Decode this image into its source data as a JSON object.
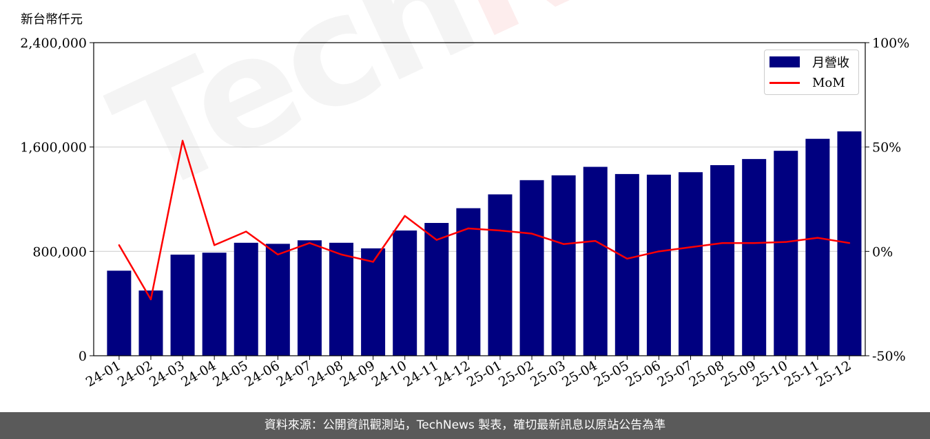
{
  "unit_label": "新台幣仟元",
  "footer_text": "資料來源：公開資訊觀測站，TechNews 製表，確切最新訊息以原站公告為準",
  "watermark": {
    "part1": "Tech",
    "part2": "News"
  },
  "colors": {
    "bar": "#000080",
    "line": "#ff0000",
    "grid": "#d0d0d0",
    "footer_bg": "#5a5a5a"
  },
  "chart_data": {
    "type": "bar",
    "categories": [
      "24-01",
      "24-02",
      "24-03",
      "24-04",
      "24-05",
      "24-06",
      "24-07",
      "24-08",
      "24-09",
      "24-10",
      "24-11",
      "24-12",
      "25-01",
      "25-02",
      "25-03",
      "25-04",
      "25-05",
      "25-06",
      "25-07",
      "25-08",
      "25-09",
      "25-10",
      "25-11",
      "25-12"
    ],
    "series": [
      {
        "name": "月營收",
        "type": "bar",
        "axis": "left",
        "values": [
          652000,
          500000,
          775000,
          790000,
          866000,
          858000,
          885000,
          866000,
          823000,
          960000,
          1018000,
          1131000,
          1237000,
          1346000,
          1383000,
          1448000,
          1393000,
          1388000,
          1407000,
          1461000,
          1508000,
          1571000,
          1663000,
          1720000
        ]
      },
      {
        "name": "MoM",
        "type": "line",
        "axis": "right",
        "values": [
          3,
          -23,
          53,
          3,
          9.5,
          -1.5,
          4,
          -1.5,
          -5,
          17,
          5.5,
          11,
          10,
          8.5,
          3.5,
          5,
          -3.5,
          0,
          2,
          4,
          4,
          4.5,
          6.5,
          4
        ]
      }
    ],
    "y_left": {
      "ylim": [
        0,
        2400000
      ],
      "ticks": [
        "0",
        "800,000",
        "1,600,000",
        "2,400,000"
      ],
      "tick_values": [
        0,
        800000,
        1600000,
        2400000
      ]
    },
    "y_right": {
      "ylim": [
        -50,
        100
      ],
      "ticks": [
        "-50%",
        "0%",
        "50%",
        "100%"
      ],
      "tick_values": [
        -50,
        0,
        50,
        100
      ]
    },
    "grid": true,
    "legend_position": "top-right"
  }
}
